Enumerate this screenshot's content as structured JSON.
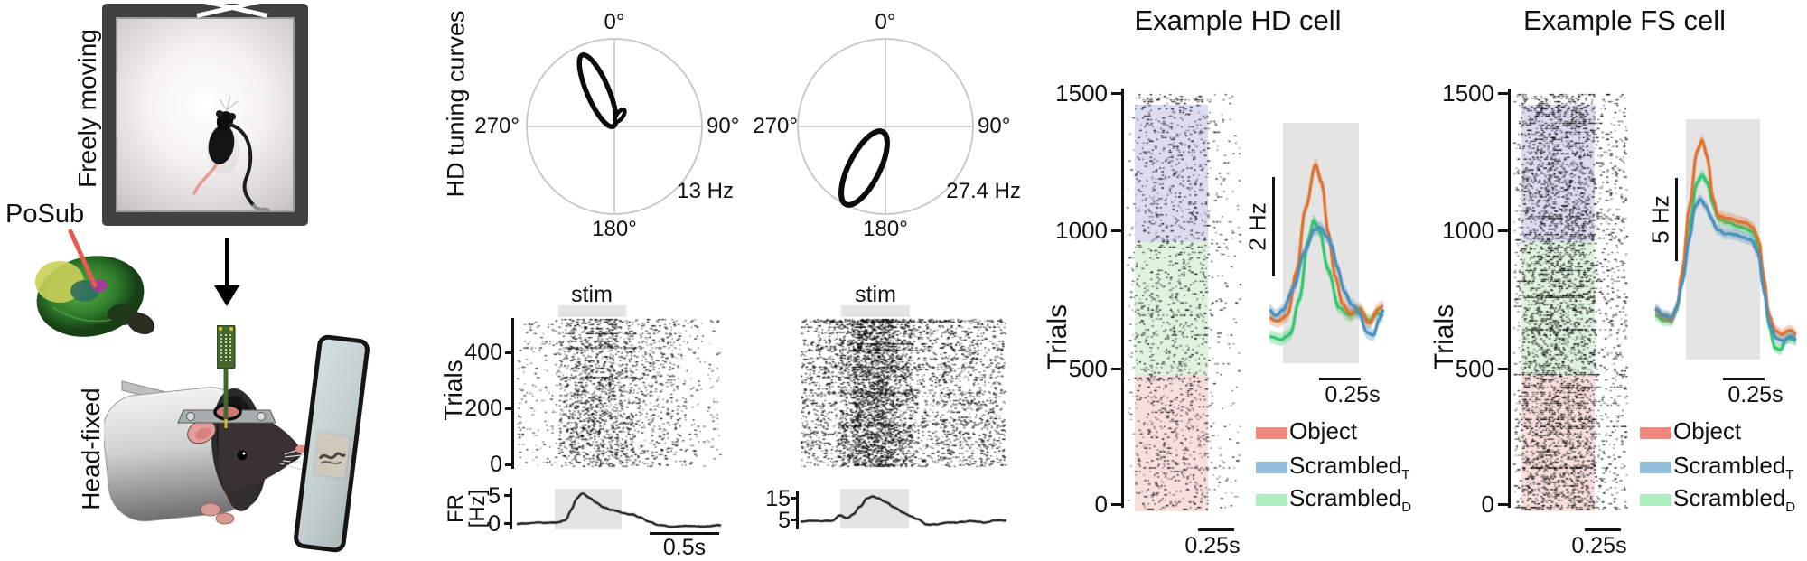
{
  "colors": {
    "object_swatch": "#F2897E",
    "object_line": "#E0712E",
    "scrambled_t_swatch": "#92BEDB",
    "scrambled_t_line": "#4A8FBE",
    "scrambled_d_swatch": "#ACEFBE",
    "scrambled_d_line": "#2FC86B",
    "shade_scrambled_t": "#DCDCF1",
    "shade_scrambled_d": "#DFF3DE",
    "shade_object": "#F8DFDC",
    "stim_gray": "#E4E4E4"
  },
  "illustration": {
    "freely_moving_label": "Freely moving",
    "posub_label": "PoSub",
    "head_fixed_label": "Head-fixed"
  },
  "tuning": {
    "axis_label": "HD tuning curves",
    "plots": [
      {
        "top": "0°",
        "right": "90°",
        "bottom": "180°",
        "left": "270°",
        "peak_rate": "13 Hz"
      },
      {
        "top": "0°",
        "right": "90°",
        "bottom": "180°",
        "left": "270°",
        "peak_rate": "27.4 Hz"
      }
    ]
  },
  "mid": {
    "stim_label": "stim",
    "trials_label": "Trials",
    "trial_ticks": [
      "400",
      "200",
      "0"
    ],
    "fr_label_top": "FR",
    "fr_label_bottom": "[Hz]",
    "hd_fr_ticks": [
      "5",
      "0"
    ],
    "fs_fr_ticks": [
      "15",
      "5"
    ],
    "time_scale": "0.5s"
  },
  "hd_cell": {
    "title": "Example HD cell",
    "trials_label": "Trials",
    "trial_ticks": [
      "1500",
      "1000",
      "500",
      "0"
    ],
    "rate_scale": "2 Hz",
    "inset_time_scale": "0.25s",
    "raster_time_scale": "0.25s"
  },
  "fs_cell": {
    "title": "Example FS cell",
    "trials_label": "Trials",
    "trial_ticks": [
      "1500",
      "1000",
      "500",
      "0"
    ],
    "rate_scale": "5 Hz",
    "inset_time_scale": "0.25s",
    "raster_time_scale": "0.25s"
  },
  "legend": {
    "object": "Object",
    "scrambled_base": "Scrambled",
    "t_sub": "T",
    "d_sub": "D"
  },
  "chart_data": [
    {
      "id": "hd_tuning_curve_left",
      "type": "line",
      "coords": "polar",
      "angle_ticks": [
        "0°",
        "90°",
        "180°",
        "270°"
      ],
      "preferred_direction_deg": 330,
      "peak_rate_hz": 13,
      "peak_rate_label": "13 Hz",
      "note": "single narrow HD tuning lobe pointing up-left toward ~330°, reaching ~90% of circle radius"
    },
    {
      "id": "hd_tuning_curve_right",
      "type": "line",
      "coords": "polar",
      "angle_ticks": [
        "0°",
        "90°",
        "180°",
        "270°"
      ],
      "preferred_direction_deg": 205,
      "peak_rate_hz": 27.4,
      "peak_rate_label": "27.4 Hz",
      "note": "single HD tuning lobe pointing down-left toward ~205°"
    },
    {
      "id": "head_fixed_hd_raster",
      "type": "scatter",
      "title": "stim",
      "ylabel": "Trials",
      "yticks": [
        0,
        200,
        400
      ],
      "n_trials": 500,
      "note": "sparse spike raster; spikes densest inside 0.5 s stim window"
    },
    {
      "id": "head_fixed_hd_fr",
      "type": "line",
      "ylabel": "FR [Hz]",
      "yticks": [
        0,
        5
      ],
      "baseline_hz": 0.5,
      "peak_hz": 6,
      "x_scale_bar": "0.5s",
      "note": "firing-rate trace peaking inside gray stim window"
    },
    {
      "id": "head_fixed_fs_raster",
      "type": "scatter",
      "title": "stim",
      "ylabel": "Trials",
      "yticks": [
        0,
        200,
        400
      ],
      "n_trials": 500,
      "note": "dense spike raster (fast-spiking cell) with darker column during stim"
    },
    {
      "id": "head_fixed_fs_fr",
      "type": "line",
      "ylabel": "FR [Hz]",
      "yticks": [
        5,
        15
      ],
      "baseline_hz": 5,
      "peak_hz": 16,
      "note": "firing-rate trace peaking inside gray stim window"
    },
    {
      "id": "example_hd_cell_raster",
      "type": "scatter",
      "title": "Example HD cell",
      "ylabel": "Trials",
      "yticks": [
        0,
        500,
        1000,
        1500
      ],
      "n_trials": 1450,
      "x_scale_bar": "0.25s",
      "blocks_bottom_to_top": [
        {
          "condition": "Object",
          "color_hex": "#F8DFDC",
          "trials": [
            0,
            475
          ]
        },
        {
          "condition": "Scrambled_D",
          "color_hex": "#DFF3DE",
          "trials": [
            475,
            950
          ]
        },
        {
          "condition": "Scrambled_T",
          "color_hex": "#DCDCF1",
          "trials": [
            950,
            1450
          ]
        }
      ]
    },
    {
      "id": "example_hd_cell_psth",
      "type": "line",
      "y_scale_bar": "2 Hz",
      "x_scale_bar": "0.25s",
      "series": [
        {
          "name": "Object",
          "color_hex": "#E0712E",
          "relative_peak": 1.0
        },
        {
          "name": "Scrambled_T",
          "color_hex": "#4A8FBE",
          "relative_peak": 0.55
        },
        {
          "name": "Scrambled_D",
          "color_hex": "#2FC86B",
          "relative_peak": 0.6
        }
      ],
      "note": "mean ± sem PSTH, transient peak inside gray stimulus box; Object highest"
    },
    {
      "id": "example_fs_cell_raster",
      "type": "scatter",
      "title": "Example FS cell",
      "ylabel": "Trials",
      "yticks": [
        0,
        500,
        1000,
        1500
      ],
      "n_trials": 1450,
      "x_scale_bar": "0.25s",
      "blocks_bottom_to_top": [
        {
          "condition": "Object",
          "color_hex": "#F8DFDC",
          "trials": [
            0,
            475
          ]
        },
        {
          "condition": "Scrambled_D",
          "color_hex": "#DFF3DE",
          "trials": [
            475,
            950
          ]
        },
        {
          "condition": "Scrambled_T",
          "color_hex": "#DCDCF1",
          "trials": [
            950,
            1450
          ]
        }
      ]
    },
    {
      "id": "example_fs_cell_psth",
      "type": "line",
      "y_scale_bar": "5 Hz",
      "x_scale_bar": "0.25s",
      "series": [
        {
          "name": "Object",
          "color_hex": "#E0712E",
          "relative_peak": 1.0
        },
        {
          "name": "Scrambled_T",
          "color_hex": "#4A8FBE",
          "relative_peak": 0.72
        },
        {
          "name": "Scrambled_D",
          "color_hex": "#2FC86B",
          "relative_peak": 0.8
        }
      ],
      "note": "sharp onset peak, sustained plateau during stimulus, sharp offset drop; all conditions similar"
    }
  ]
}
